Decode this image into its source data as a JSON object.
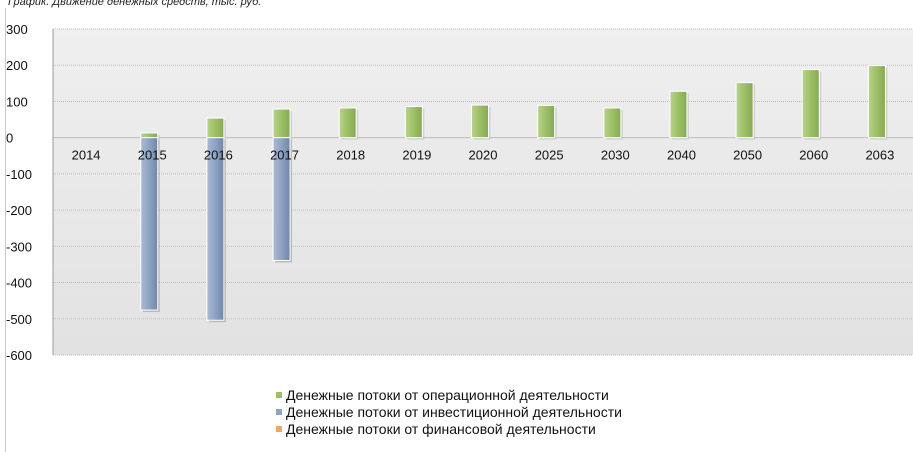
{
  "caption": "График. Движение денежных средств, тыс. руб.",
  "chart_data": {
    "type": "bar",
    "categories": [
      "2014",
      "2015",
      "2016",
      "2017",
      "2018",
      "2019",
      "2020",
      "2025",
      "2030",
      "2040",
      "2050",
      "2060",
      "2063"
    ],
    "series": [
      {
        "name": "Денежные потоки от операционной деятельности",
        "color": "#9dbf6b",
        "values": [
          0,
          13,
          54,
          79,
          82,
          86,
          90,
          89,
          82,
          128,
          152,
          188,
          199
        ]
      },
      {
        "name": "Денежные потоки от инвестиционной деятельности",
        "color": "#8ea3c2",
        "values": [
          0,
          -476,
          -504,
          -339,
          0,
          0,
          0,
          0,
          0,
          0,
          0,
          0,
          0
        ]
      },
      {
        "name": "Денежные потоки от финансовой деятельности",
        "color": "#f0a860",
        "values": [
          0,
          0,
          0,
          0,
          0,
          0,
          0,
          0,
          0,
          0,
          0,
          0,
          0
        ]
      }
    ],
    "ylim": [
      -600,
      300
    ],
    "yticks": [
      "300",
      "200",
      "100",
      "0",
      "-100",
      "-200",
      "-300",
      "-400",
      "-500",
      "-600"
    ],
    "grid": true,
    "legend_position": "bottom-center"
  }
}
